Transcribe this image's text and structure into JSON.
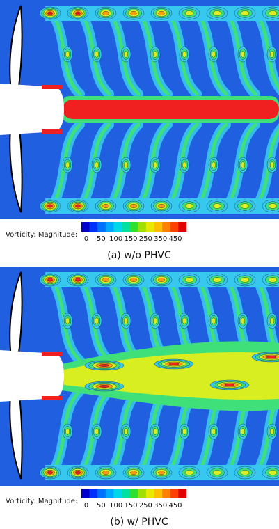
{
  "panels": [
    {
      "colorbar": {
        "label": "Vorticity: Magnitude:",
        "ticks": [
          0,
          50,
          100,
          150,
          250,
          350,
          450
        ]
      },
      "caption": "(a) w/o PHVC"
    },
    {
      "colorbar": {
        "label": "Vorticity: Magnitude:",
        "ticks": [
          0,
          50,
          100,
          150,
          250,
          350,
          450
        ]
      },
      "caption": "(b) w/ PHVC"
    }
  ]
}
